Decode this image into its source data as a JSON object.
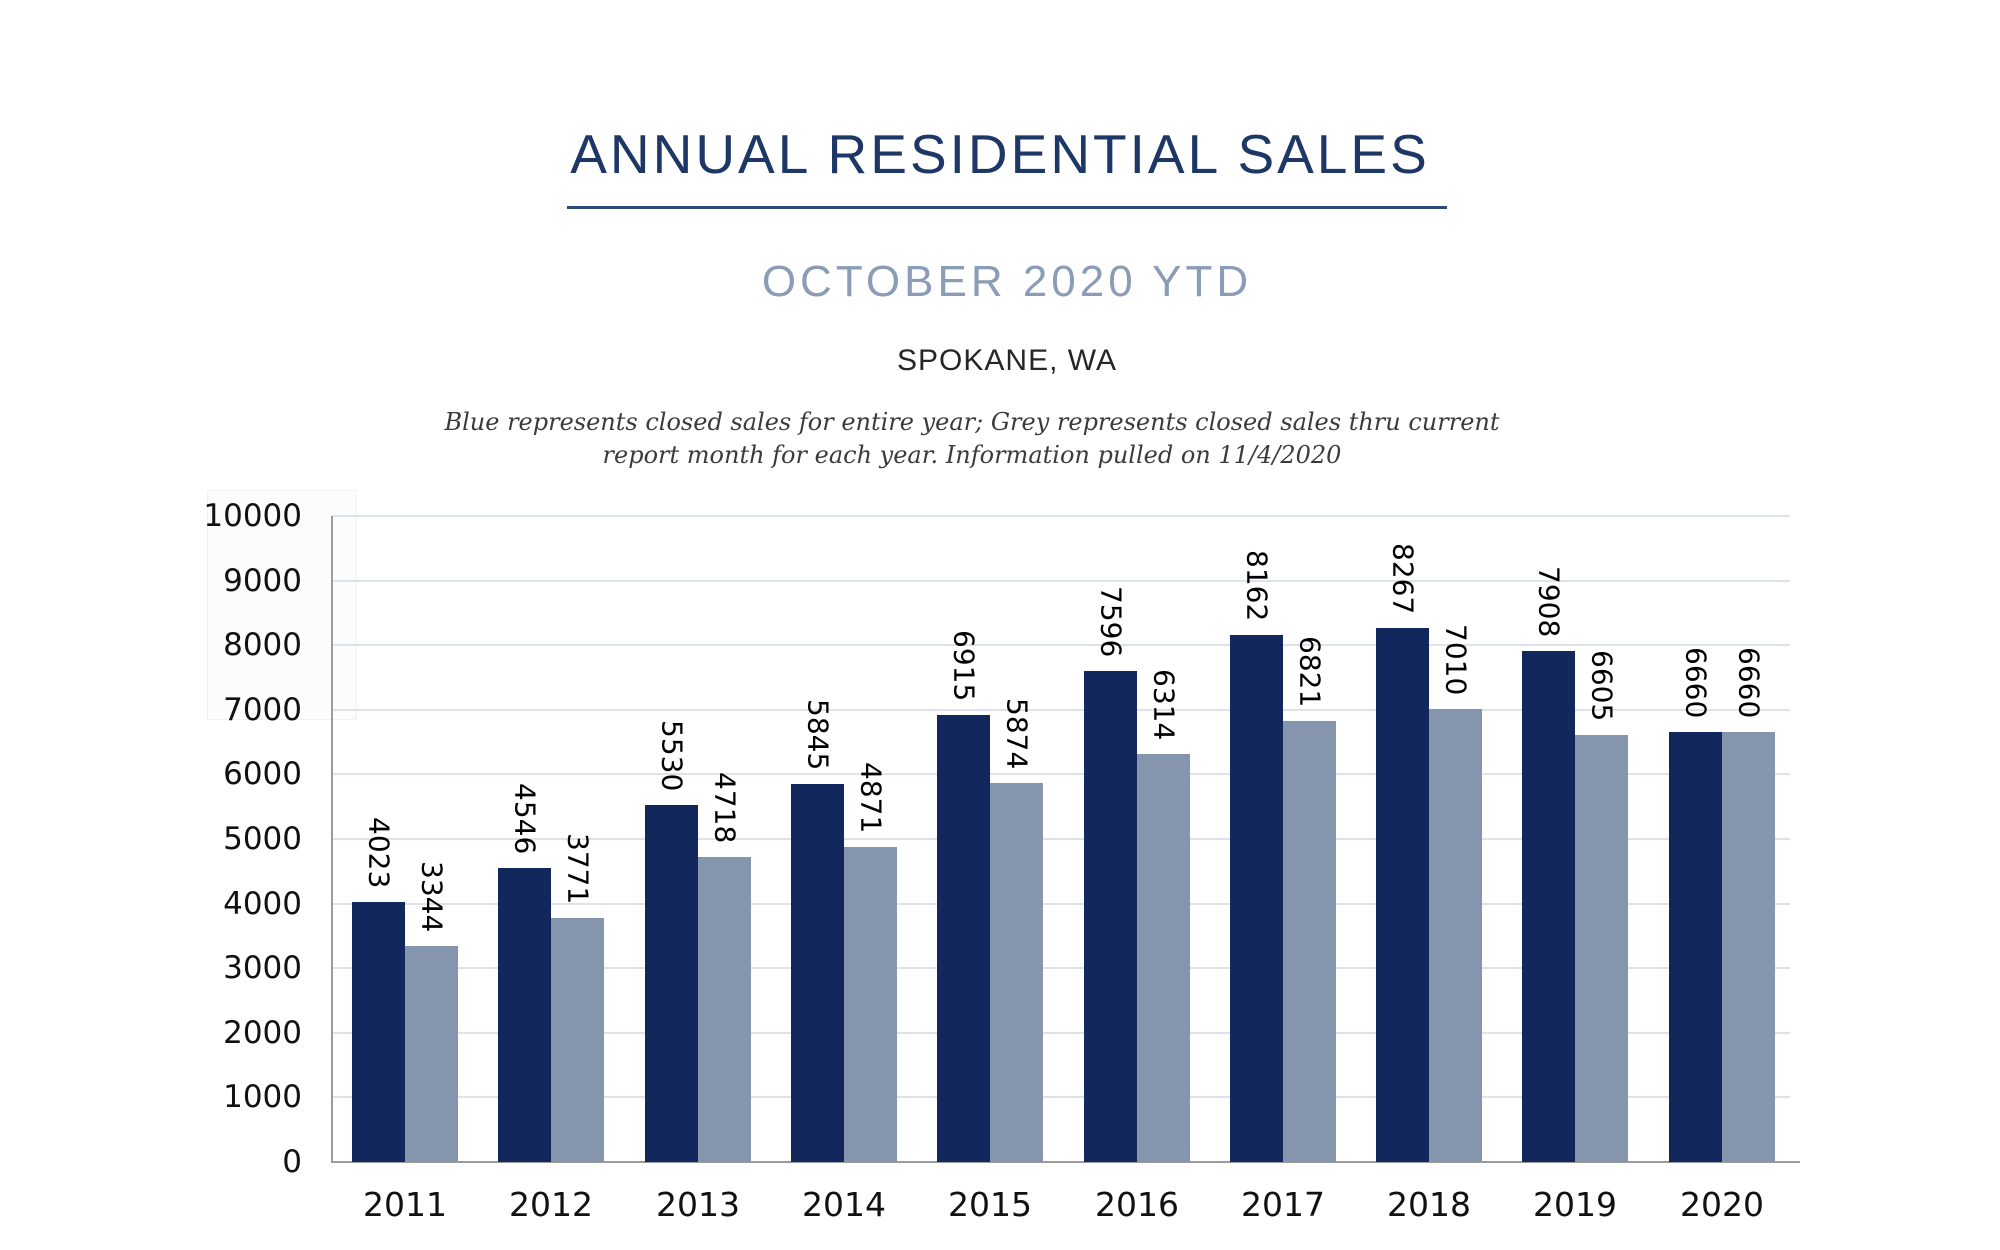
{
  "header": {
    "title": "ANNUAL RESIDENTIAL SALES",
    "subtitle": "OCTOBER 2020 YTD",
    "location": "SPOKANE, WA",
    "note_line1": "Blue represents closed sales for entire year; Grey represents closed sales thru current",
    "note_line2": "report month for each year.  Information pulled on 11/4/2020"
  },
  "chart_data": {
    "type": "bar",
    "title": "Annual Residential Sales, Spokane WA, October 2020 YTD",
    "categories": [
      "2011",
      "2012",
      "2013",
      "2014",
      "2015",
      "2016",
      "2017",
      "2018",
      "2019",
      "2020"
    ],
    "series": [
      {
        "name": "Closed sales for entire year (Blue)",
        "color": "#12275c",
        "values": [
          4023,
          4546,
          5530,
          5845,
          6915,
          7596,
          8162,
          8267,
          7908,
          6660
        ]
      },
      {
        "name": "Closed sales thru current report month (Grey)",
        "color": "#8595ae",
        "values": [
          3344,
          3771,
          4718,
          4871,
          5874,
          6314,
          6821,
          7010,
          6605,
          6660
        ]
      }
    ],
    "xlabel": "",
    "ylabel": "",
    "ylim": [
      0,
      10000
    ],
    "ytick_step": 1000,
    "yticks": [
      0,
      1000,
      2000,
      3000,
      4000,
      5000,
      6000,
      7000,
      8000,
      9000,
      10000
    ],
    "grid": "horizontal",
    "legend_position": "none",
    "bar_value_labels": "rotated-vertical",
    "gridline_color": "#dde3ed",
    "axis_color": "#9b9b9b",
    "label_color": "#000000"
  }
}
